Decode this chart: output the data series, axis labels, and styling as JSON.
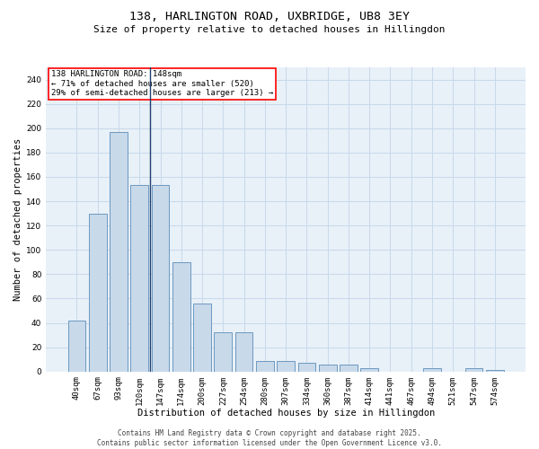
{
  "title_line1": "138, HARLINGTON ROAD, UXBRIDGE, UB8 3EY",
  "title_line2": "Size of property relative to detached houses in Hillingdon",
  "xlabel": "Distribution of detached houses by size in Hillingdon",
  "ylabel": "Number of detached properties",
  "categories": [
    "40sqm",
    "67sqm",
    "93sqm",
    "120sqm",
    "147sqm",
    "174sqm",
    "200sqm",
    "227sqm",
    "254sqm",
    "280sqm",
    "307sqm",
    "334sqm",
    "360sqm",
    "387sqm",
    "414sqm",
    "441sqm",
    "467sqm",
    "494sqm",
    "521sqm",
    "547sqm",
    "574sqm"
  ],
  "values": [
    42,
    130,
    197,
    153,
    153,
    90,
    56,
    32,
    32,
    9,
    9,
    7,
    6,
    6,
    3,
    0,
    0,
    3,
    0,
    3,
    1
  ],
  "bar_color": "#c8d9ea",
  "bar_edge_color": "#5b8db8",
  "highlight_bar_index": 4,
  "highlight_line_color": "#1f3f6e",
  "annotation_box_text": "138 HARLINGTON ROAD: 148sqm\n← 71% of detached houses are smaller (520)\n29% of semi-detached houses are larger (213) →",
  "annotation_box_color": "white",
  "annotation_box_edge_color": "red",
  "annotation_fontsize": 6.5,
  "ylim": [
    0,
    250
  ],
  "yticks": [
    0,
    20,
    40,
    60,
    80,
    100,
    120,
    140,
    160,
    180,
    200,
    220,
    240
  ],
  "grid_color": "#c8d9ea",
  "background_color": "#e8f0f8",
  "footer_line1": "Contains HM Land Registry data © Crown copyright and database right 2025.",
  "footer_line2": "Contains public sector information licensed under the Open Government Licence v3.0.",
  "title_fontsize": 9.5,
  "subtitle_fontsize": 8.0,
  "axis_label_fontsize": 7.5,
  "tick_fontsize": 6.5,
  "footer_fontsize": 5.5
}
